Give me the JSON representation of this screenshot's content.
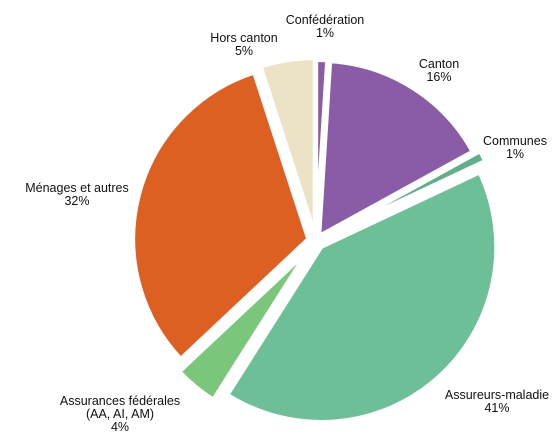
{
  "chart_data": {
    "type": "pie",
    "title": "",
    "slices": [
      {
        "label": [
          "Confédération"
        ],
        "value": 1,
        "value_label": "1%",
        "color": "#8a5ba6"
      },
      {
        "label": [
          "Canton"
        ],
        "value": 16,
        "value_label": "16%",
        "color": "#8a5ba6"
      },
      {
        "label": [
          "Communes"
        ],
        "value": 1,
        "value_label": "1%",
        "color": "#5fb088"
      },
      {
        "label": [
          "Assureurs-maladie"
        ],
        "value": 41,
        "value_label": "41%",
        "color": "#6dbf98"
      },
      {
        "label": [
          "Assurances fédérales",
          "(AA,  AI,  AM)"
        ],
        "value": 4,
        "value_label": "4%",
        "color": "#7ac77b"
      },
      {
        "label": [
          "Ménages et autres"
        ],
        "value": 32,
        "value_label": "32%",
        "color": "#de5f22"
      },
      {
        "label": [
          "Hors canton"
        ],
        "value": 5,
        "value_label": "5%",
        "color": "#ece2c6"
      }
    ]
  }
}
